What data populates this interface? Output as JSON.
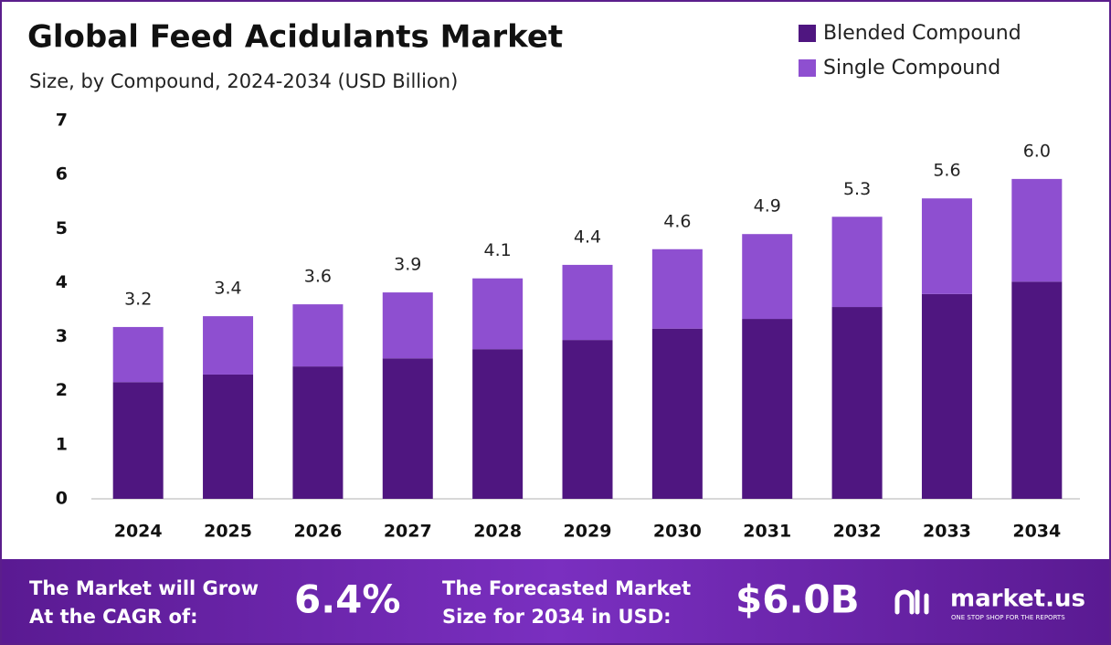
{
  "chart_data": {
    "type": "stacked_bar",
    "title": "Global Feed Acidulants Market",
    "subtitle": "Size, by Compound, 2024-2034 (USD Billion)",
    "categories": [
      "2024",
      "2025",
      "2026",
      "2027",
      "2028",
      "2029",
      "2030",
      "2031",
      "2032",
      "2033",
      "2034"
    ],
    "series": [
      {
        "name": "Blended Compound",
        "color": "#4f1680",
        "values": [
          2.16,
          2.3,
          2.45,
          2.6,
          2.77,
          2.94,
          3.15,
          3.33,
          3.55,
          3.79,
          4.02
        ]
      },
      {
        "name": "Single Compound",
        "color": "#8e4fd0",
        "values": [
          1.02,
          1.08,
          1.15,
          1.22,
          1.31,
          1.39,
          1.47,
          1.57,
          1.67,
          1.77,
          1.9
        ]
      }
    ],
    "totals": [
      "3.2",
      "3.4",
      "3.6",
      "3.9",
      "4.1",
      "4.4",
      "4.6",
      "4.9",
      "5.3",
      "5.6",
      "6.0"
    ],
    "ylim": [
      0,
      7
    ],
    "yticks": [
      0,
      1,
      2,
      3,
      4,
      5,
      6,
      7
    ],
    "grid": false,
    "legend": "top-right"
  },
  "footer": {
    "cagr_label_1": "The Market will Grow",
    "cagr_label_2": "At the CAGR of:",
    "cagr_value": "6.4%",
    "forecast_label_1": "The Forecasted Market",
    "forecast_label_2": "Size for 2034 in USD:",
    "forecast_value": "$6.0B",
    "brand": "market.us",
    "tagline": "ONE STOP SHOP FOR THE REPORTS"
  }
}
